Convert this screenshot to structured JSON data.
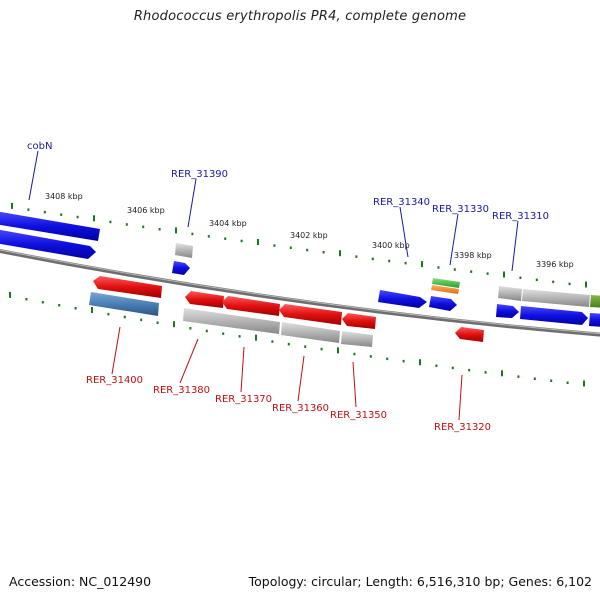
{
  "title": "Rhodococcus erythropolis PR4, complete genome",
  "footer": {
    "accession": "Accession: NC_012490",
    "summary": "Topology: circular; Length: 6,516,310 bp; Genes: 6,102"
  },
  "ticks": [
    "3408 kbp",
    "3406 kbp",
    "3404 kbp",
    "3402 kbp",
    "3400 kbp",
    "3398 kbp",
    "3396 kbp"
  ],
  "gene_labels_top": [
    "cobN",
    "RER_31390",
    "RER_31340",
    "RER_31330",
    "RER_31310"
  ],
  "gene_labels_bottom": [
    "RER_31400",
    "RER_31380",
    "RER_31370",
    "RER_31360",
    "RER_31350",
    "RER_31320"
  ],
  "colors": {
    "forward_gene": "#1010e0",
    "reverse_gene": "#e01010",
    "gray_feature": "#b4b4b4",
    "steelblue_feature": "#4a7fb5",
    "green_feature": "#40b040",
    "orange_feature": "#f08020",
    "olive_feature": "#6a9a2a",
    "backbone": "#8a8a8a",
    "tick_marks": "#1a7a1a",
    "label_top": "#1a1aa0",
    "label_bottom": "#c01010"
  }
}
